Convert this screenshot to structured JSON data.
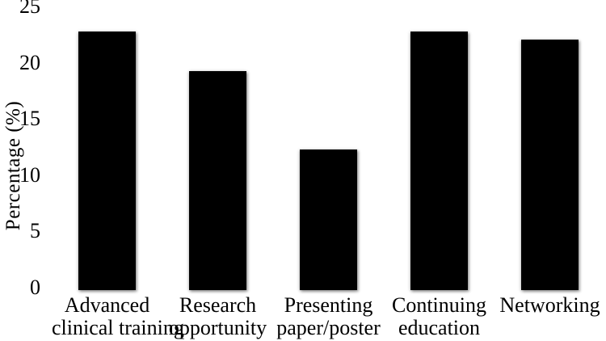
{
  "figure": {
    "background_color": "#ffffff",
    "bar_color": "#000000",
    "text_color": "#000000"
  },
  "chart_data": {
    "type": "bar",
    "title": "",
    "xlabel": "",
    "ylabel": "Percentage (%)",
    "categories": [
      "Advanced clinical training",
      "Research opportunity",
      "Presenting paper/poster",
      "Continuing education",
      "Networking"
    ],
    "category_lines": [
      [
        "Advanced",
        "clinical training"
      ],
      [
        "Research",
        "opportunity"
      ],
      [
        "Presenting",
        "paper/poster"
      ],
      [
        "Continuing",
        "education"
      ],
      [
        "Networking"
      ]
    ],
    "values": [
      23,
      19.5,
      12.5,
      23,
      22.3
    ],
    "yticks": [
      0,
      5,
      10,
      15,
      20,
      25
    ],
    "ylim": [
      0,
      25
    ],
    "grid": false,
    "legend": false,
    "axis_lines": false,
    "bar_color": "#000000"
  }
}
